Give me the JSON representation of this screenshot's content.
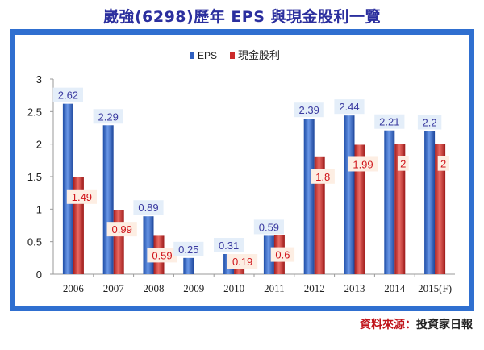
{
  "title": "崴強(6298)歷年 EPS 與現金股利一覽",
  "source_label": "資料來源：",
  "source_value": "投資家日報",
  "colors": {
    "frame": "#2f6fd0",
    "eps": "#2f5fbf",
    "dividend": "#cc2b2b",
    "title": "#2b2f9e"
  },
  "chart_data": {
    "type": "bar",
    "title": "崴強(6298)歷年 EPS 與現金股利一覽",
    "categories": [
      "2006",
      "2007",
      "2008",
      "2009",
      "2010",
      "2011",
      "2012",
      "2013",
      "2014",
      "2015(F)"
    ],
    "series": [
      {
        "name": "EPS",
        "values": [
          2.62,
          2.29,
          0.89,
          0.25,
          0.31,
          0.59,
          2.39,
          2.44,
          2.21,
          2.2
        ],
        "labels": [
          "2.62",
          "2.29",
          "0.89",
          "0.25",
          "0.31",
          "0.59",
          "2.39",
          "2.44",
          "2.21",
          "2.2"
        ]
      },
      {
        "name": "現金股利",
        "values": [
          1.49,
          0.99,
          0.59,
          null,
          0.19,
          0.6,
          1.8,
          1.99,
          2,
          2
        ],
        "labels": [
          "1.49",
          "0.99",
          "0.59",
          "",
          "0.19",
          "0.6",
          "1.8",
          "1.99",
          "2",
          "2"
        ]
      }
    ],
    "yticks": [
      "0",
      "0.5",
      "1",
      "1.5",
      "2",
      "2.5",
      "3"
    ],
    "ylim": [
      0,
      3
    ],
    "xlabel": "",
    "ylabel": "",
    "legend_position": "top-center"
  }
}
